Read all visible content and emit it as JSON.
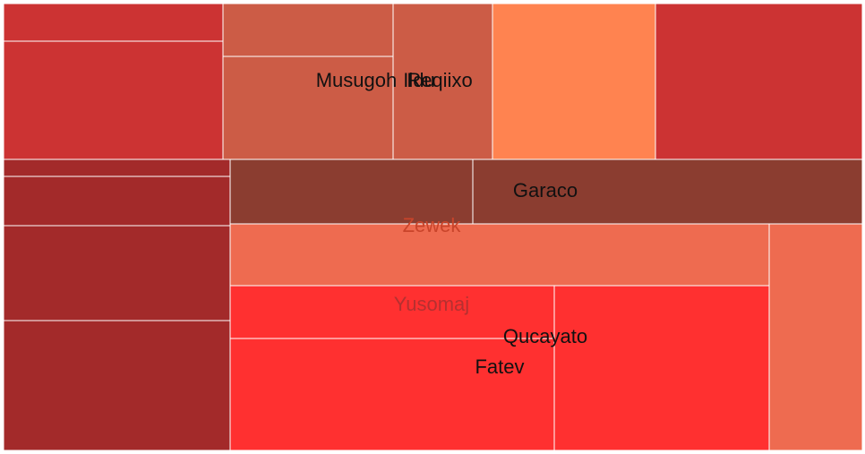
{
  "chart_data": {
    "type": "treemap",
    "title": "",
    "groups": [
      {
        "name": "Musugoh",
        "label_color": "#111111",
        "color": "#cc3333",
        "values": [
          5,
          21
        ]
      },
      {
        "name": "Reqiixo",
        "label_color": "#111111",
        "color": "#cc5c46",
        "values": [
          6,
          12,
          10
        ]
      },
      {
        "name": "Ildu",
        "label_color": "#111111",
        "color": "#ff8350",
        "values": [
          10
        ]
      },
      {
        "name": "",
        "label_color": "#111111",
        "color": "#cc3333",
        "values": [
          13
        ]
      },
      {
        "name": "",
        "label_color": "#111111",
        "color": "#a32a2a",
        "values": [
          1,
          3,
          5,
          8
        ]
      },
      {
        "name": "Garaco",
        "label_color": "#111111",
        "color": "#8b3d30",
        "values": [
          10,
          11
        ]
      },
      {
        "name": "Zewek",
        "label_color": "#c9442a",
        "color": "#ee6b50",
        "values": [
          20,
          9
        ]
      },
      {
        "name": "Yusomaj",
        "label_color": "#b53030",
        "color": "#ff3030",
        "values": [
          10,
          22
        ]
      },
      {
        "name": "Qucayato",
        "label_color": "#111111",
        "color": "#ff3030",
        "values": [
          16
        ]
      },
      {
        "name": "Fatev",
        "label_color": "#111111",
        "color": "#ff3030",
        "values": []
      }
    ]
  }
}
